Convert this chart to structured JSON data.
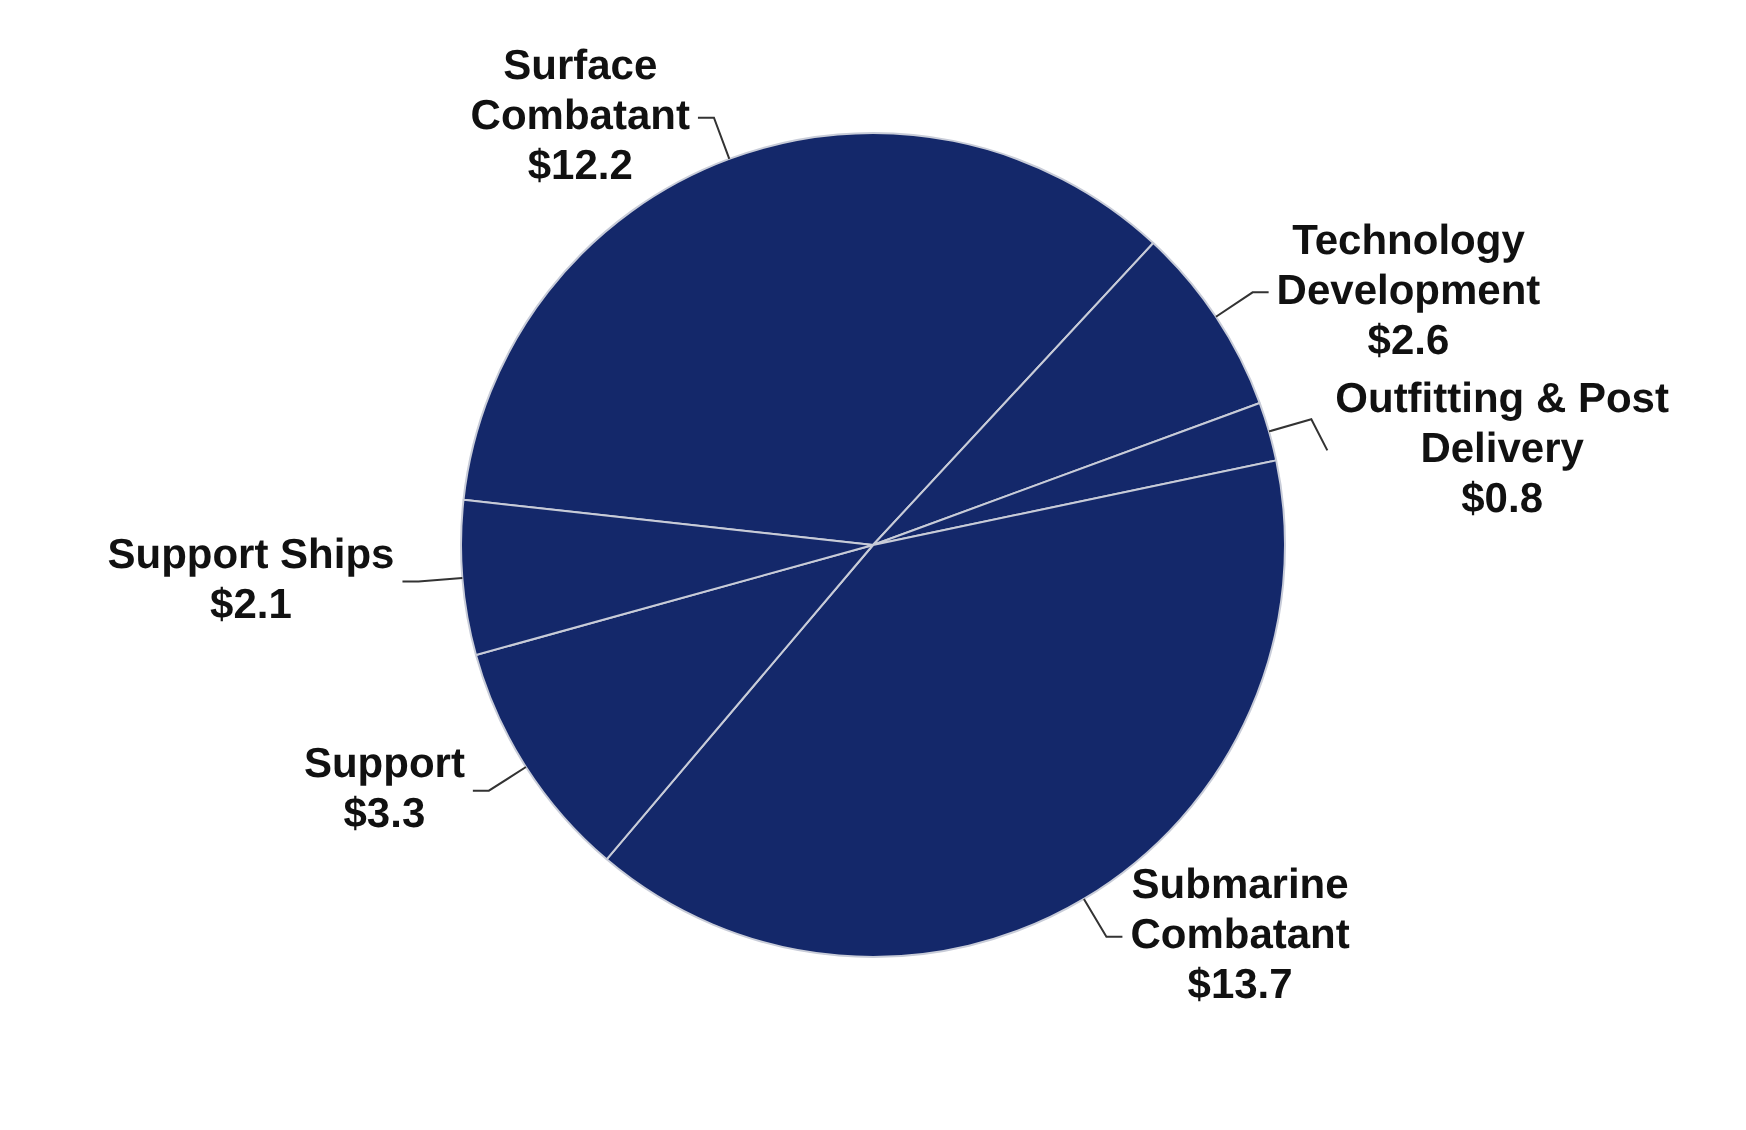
{
  "chart_data": {
    "type": "pie",
    "categories": [
      "Surface Combatant",
      "Technology Development",
      "Outfitting & Post Delivery",
      "Submarine Combatant",
      "Support",
      "Support Ships"
    ],
    "values": [
      12.2,
      2.6,
      0.8,
      13.7,
      3.3,
      2.1
    ],
    "value_labels": [
      "$12.2",
      "$2.6",
      "$0.8",
      "$13.7",
      "$3.3",
      "$2.1"
    ],
    "colors": [
      "#14286a",
      "#14286a",
      "#14286a",
      "#14286a",
      "#14286a",
      "#14286a"
    ]
  }
}
